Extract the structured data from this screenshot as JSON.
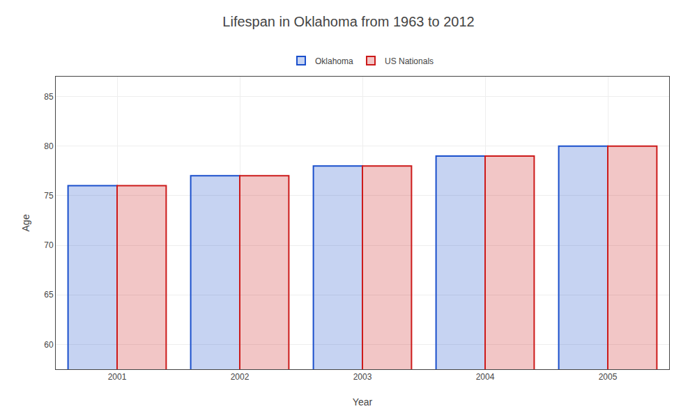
{
  "chart_data": {
    "type": "bar",
    "title": "Lifespan in Oklahoma from 1963 to 2012",
    "xlabel": "Year",
    "ylabel": "Age",
    "categories": [
      "2001",
      "2002",
      "2003",
      "2004",
      "2005"
    ],
    "series": [
      {
        "name": "Oklahoma",
        "color": "#1a4fcc",
        "values": [
          76,
          77,
          78,
          79,
          80
        ]
      },
      {
        "name": "US Nationals",
        "color": "#cc1a1a",
        "values": [
          76,
          77,
          78,
          79,
          80
        ]
      }
    ],
    "ylim": [
      57.5,
      87
    ],
    "yticks": [
      60,
      65,
      70,
      75,
      80,
      85
    ],
    "grid": true,
    "legend": "upper center"
  }
}
